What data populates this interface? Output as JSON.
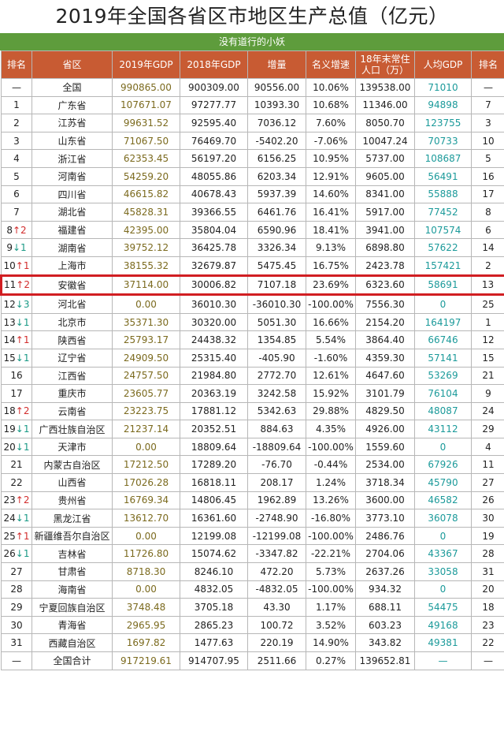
{
  "title": "2019年全国各省区市地区生产总值（亿元）",
  "subtitle": "没有道行的小妖",
  "columns": [
    "排名",
    "省区",
    "2019年GDP",
    "2018年GDP",
    "增量",
    "名义增速",
    "18年末常住人口（万）",
    "人均GDP",
    "排名"
  ],
  "colors": {
    "header_bg": "#c85b33",
    "subtitle_bg": "#5e9c3c",
    "highlight_border": "#d11e22",
    "per_capita": "#1b9a9a",
    "gdp2019": "#7b6a1e",
    "up": "#d22d2d",
    "down": "#1a9a86"
  },
  "rows": [
    {
      "rank": "—",
      "chg": "",
      "dir": "",
      "region": "全国",
      "gdp2019": "990865.00",
      "gdp2018": "900309.00",
      "inc": "90556.00",
      "growth": "10.06%",
      "pop": "139538.00",
      "pc": "71010",
      "pcrank": "—"
    },
    {
      "rank": "1",
      "chg": "",
      "dir": "",
      "region": "广东省",
      "gdp2019": "107671.07",
      "gdp2018": "97277.77",
      "inc": "10393.30",
      "growth": "10.68%",
      "pop": "11346.00",
      "pc": "94898",
      "pcrank": "7"
    },
    {
      "rank": "2",
      "chg": "",
      "dir": "",
      "region": "江苏省",
      "gdp2019": "99631.52",
      "gdp2018": "92595.40",
      "inc": "7036.12",
      "growth": "7.60%",
      "pop": "8050.70",
      "pc": "123755",
      "pcrank": "3"
    },
    {
      "rank": "3",
      "chg": "",
      "dir": "",
      "region": "山东省",
      "gdp2019": "71067.50",
      "gdp2018": "76469.70",
      "inc": "-5402.20",
      "growth": "-7.06%",
      "pop": "10047.24",
      "pc": "70733",
      "pcrank": "10"
    },
    {
      "rank": "4",
      "chg": "",
      "dir": "",
      "region": "浙江省",
      "gdp2019": "62353.45",
      "gdp2018": "56197.20",
      "inc": "6156.25",
      "growth": "10.95%",
      "pop": "5737.00",
      "pc": "108687",
      "pcrank": "5"
    },
    {
      "rank": "5",
      "chg": "",
      "dir": "",
      "region": "河南省",
      "gdp2019": "54259.20",
      "gdp2018": "48055.86",
      "inc": "6203.34",
      "growth": "12.91%",
      "pop": "9605.00",
      "pc": "56491",
      "pcrank": "16"
    },
    {
      "rank": "6",
      "chg": "",
      "dir": "",
      "region": "四川省",
      "gdp2019": "46615.82",
      "gdp2018": "40678.43",
      "inc": "5937.39",
      "growth": "14.60%",
      "pop": "8341.00",
      "pc": "55888",
      "pcrank": "17"
    },
    {
      "rank": "7",
      "chg": "",
      "dir": "",
      "region": "湖北省",
      "gdp2019": "45828.31",
      "gdp2018": "39366.55",
      "inc": "6461.76",
      "growth": "16.41%",
      "pop": "5917.00",
      "pc": "77452",
      "pcrank": "8"
    },
    {
      "rank": "8",
      "chg": "↑2",
      "dir": "up",
      "region": "福建省",
      "gdp2019": "42395.00",
      "gdp2018": "35804.04",
      "inc": "6590.96",
      "growth": "18.41%",
      "pop": "3941.00",
      "pc": "107574",
      "pcrank": "6"
    },
    {
      "rank": "9",
      "chg": "↓1",
      "dir": "down",
      "region": "湖南省",
      "gdp2019": "39752.12",
      "gdp2018": "36425.78",
      "inc": "3326.34",
      "growth": "9.13%",
      "pop": "6898.80",
      "pc": "57622",
      "pcrank": "14"
    },
    {
      "rank": "10",
      "chg": "↑1",
      "dir": "up",
      "region": "上海市",
      "gdp2019": "38155.32",
      "gdp2018": "32679.87",
      "inc": "5475.45",
      "growth": "16.75%",
      "pop": "2423.78",
      "pc": "157421",
      "pcrank": "2"
    },
    {
      "rank": "11",
      "chg": "↑2",
      "dir": "up",
      "region": "安徽省",
      "gdp2019": "37114.00",
      "gdp2018": "30006.82",
      "inc": "7107.18",
      "growth": "23.69%",
      "pop": "6323.60",
      "pc": "58691",
      "pcrank": "13",
      "highlight": true
    },
    {
      "rank": "12",
      "chg": "↓3",
      "dir": "down",
      "region": "河北省",
      "gdp2019": "0.00",
      "gdp2018": "36010.30",
      "inc": "-36010.30",
      "growth": "-100.00%",
      "pop": "7556.30",
      "pc": "0",
      "pcrank": "25"
    },
    {
      "rank": "13",
      "chg": "↓1",
      "dir": "down",
      "region": "北京市",
      "gdp2019": "35371.30",
      "gdp2018": "30320.00",
      "inc": "5051.30",
      "growth": "16.66%",
      "pop": "2154.20",
      "pc": "164197",
      "pcrank": "1"
    },
    {
      "rank": "14",
      "chg": "↑1",
      "dir": "up",
      "region": "陕西省",
      "gdp2019": "25793.17",
      "gdp2018": "24438.32",
      "inc": "1354.85",
      "growth": "5.54%",
      "pop": "3864.40",
      "pc": "66746",
      "pcrank": "12"
    },
    {
      "rank": "15",
      "chg": "↓1",
      "dir": "down",
      "region": "辽宁省",
      "gdp2019": "24909.50",
      "gdp2018": "25315.40",
      "inc": "-405.90",
      "growth": "-1.60%",
      "pop": "4359.30",
      "pc": "57141",
      "pcrank": "15"
    },
    {
      "rank": "16",
      "chg": "",
      "dir": "",
      "region": "江西省",
      "gdp2019": "24757.50",
      "gdp2018": "21984.80",
      "inc": "2772.70",
      "growth": "12.61%",
      "pop": "4647.60",
      "pc": "53269",
      "pcrank": "21"
    },
    {
      "rank": "17",
      "chg": "",
      "dir": "",
      "region": "重庆市",
      "gdp2019": "23605.77",
      "gdp2018": "20363.19",
      "inc": "3242.58",
      "growth": "15.92%",
      "pop": "3101.79",
      "pc": "76104",
      "pcrank": "9"
    },
    {
      "rank": "18",
      "chg": "↑2",
      "dir": "up",
      "region": "云南省",
      "gdp2019": "23223.75",
      "gdp2018": "17881.12",
      "inc": "5342.63",
      "growth": "29.88%",
      "pop": "4829.50",
      "pc": "48087",
      "pcrank": "24"
    },
    {
      "rank": "19",
      "chg": "↓1",
      "dir": "down",
      "region": "广西壮族自治区",
      "gdp2019": "21237.14",
      "gdp2018": "20352.51",
      "inc": "884.63",
      "growth": "4.35%",
      "pop": "4926.00",
      "pc": "43112",
      "pcrank": "29"
    },
    {
      "rank": "20",
      "chg": "↓1",
      "dir": "down",
      "region": "天津市",
      "gdp2019": "0.00",
      "gdp2018": "18809.64",
      "inc": "-18809.64",
      "growth": "-100.00%",
      "pop": "1559.60",
      "pc": "0",
      "pcrank": "4"
    },
    {
      "rank": "21",
      "chg": "",
      "dir": "",
      "region": "内蒙古自治区",
      "gdp2019": "17212.50",
      "gdp2018": "17289.20",
      "inc": "-76.70",
      "growth": "-0.44%",
      "pop": "2534.00",
      "pc": "67926",
      "pcrank": "11"
    },
    {
      "rank": "22",
      "chg": "",
      "dir": "",
      "region": "山西省",
      "gdp2019": "17026.28",
      "gdp2018": "16818.11",
      "inc": "208.17",
      "growth": "1.24%",
      "pop": "3718.34",
      "pc": "45790",
      "pcrank": "27"
    },
    {
      "rank": "23",
      "chg": "↑2",
      "dir": "up",
      "region": "贵州省",
      "gdp2019": "16769.34",
      "gdp2018": "14806.45",
      "inc": "1962.89",
      "growth": "13.26%",
      "pop": "3600.00",
      "pc": "46582",
      "pcrank": "26"
    },
    {
      "rank": "24",
      "chg": "↓1",
      "dir": "down",
      "region": "黑龙江省",
      "gdp2019": "13612.70",
      "gdp2018": "16361.60",
      "inc": "-2748.90",
      "growth": "-16.80%",
      "pop": "3773.10",
      "pc": "36078",
      "pcrank": "30"
    },
    {
      "rank": "25",
      "chg": "↑1",
      "dir": "up",
      "region": "新疆维吾尔自治区",
      "gdp2019": "0.00",
      "gdp2018": "12199.08",
      "inc": "-12199.08",
      "growth": "-100.00%",
      "pop": "2486.76",
      "pc": "0",
      "pcrank": "19"
    },
    {
      "rank": "26",
      "chg": "↓1",
      "dir": "down",
      "region": "吉林省",
      "gdp2019": "11726.80",
      "gdp2018": "15074.62",
      "inc": "-3347.82",
      "growth": "-22.21%",
      "pop": "2704.06",
      "pc": "43367",
      "pcrank": "28"
    },
    {
      "rank": "27",
      "chg": "",
      "dir": "",
      "region": "甘肃省",
      "gdp2019": "8718.30",
      "gdp2018": "8246.10",
      "inc": "472.20",
      "growth": "5.73%",
      "pop": "2637.26",
      "pc": "33058",
      "pcrank": "31"
    },
    {
      "rank": "28",
      "chg": "",
      "dir": "",
      "region": "海南省",
      "gdp2019": "0.00",
      "gdp2018": "4832.05",
      "inc": "-4832.05",
      "growth": "-100.00%",
      "pop": "934.32",
      "pc": "0",
      "pcrank": "20"
    },
    {
      "rank": "29",
      "chg": "",
      "dir": "",
      "region": "宁夏回族自治区",
      "gdp2019": "3748.48",
      "gdp2018": "3705.18",
      "inc": "43.30",
      "growth": "1.17%",
      "pop": "688.11",
      "pc": "54475",
      "pcrank": "18"
    },
    {
      "rank": "30",
      "chg": "",
      "dir": "",
      "region": "青海省",
      "gdp2019": "2965.95",
      "gdp2018": "2865.23",
      "inc": "100.72",
      "growth": "3.52%",
      "pop": "603.23",
      "pc": "49168",
      "pcrank": "23"
    },
    {
      "rank": "31",
      "chg": "",
      "dir": "",
      "region": "西藏自治区",
      "gdp2019": "1697.82",
      "gdp2018": "1477.63",
      "inc": "220.19",
      "growth": "14.90%",
      "pop": "343.82",
      "pc": "49381",
      "pcrank": "22"
    },
    {
      "rank": "—",
      "chg": "",
      "dir": "",
      "region": "全国合计",
      "gdp2019": "917219.61",
      "gdp2018": "914707.95",
      "inc": "2511.66",
      "growth": "0.27%",
      "pop": "139652.81",
      "pc": "—",
      "pcrank": "—"
    }
  ]
}
